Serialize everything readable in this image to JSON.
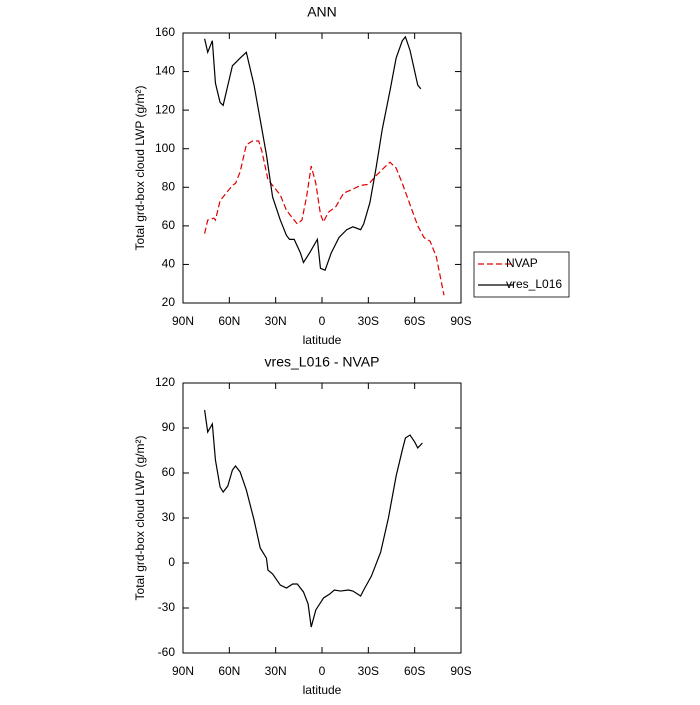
{
  "chart_data": [
    {
      "type": "line",
      "title": "ANN",
      "xlabel": "latitude",
      "ylabel": "Total grd-box cloud LWP (g/m²)",
      "xlim": [
        90,
        -90
      ],
      "xticks": [
        {
          "value": 90,
          "label": "90N"
        },
        {
          "value": 60,
          "label": "60N"
        },
        {
          "value": 30,
          "label": "30N"
        },
        0,
        {
          "value": -30,
          "label": "30S"
        },
        {
          "value": -60,
          "label": "60S"
        },
        {
          "value": -90,
          "label": "90S"
        }
      ],
      "ylim": [
        20,
        160
      ],
      "yticks": [
        20,
        40,
        60,
        80,
        100,
        120,
        140,
        160
      ],
      "legend": "outside-right",
      "series": [
        {
          "name": "NVAP",
          "color": "#e00000",
          "dashed": true,
          "x": [
            76,
            74,
            70,
            69,
            66,
            62,
            58,
            56,
            53,
            49,
            45,
            41,
            39,
            35,
            31,
            27,
            23,
            19,
            16,
            13,
            10,
            7,
            4,
            1,
            -1,
            -4,
            -9,
            -14,
            -20,
            -25,
            -30,
            -35,
            -40,
            -44,
            -48,
            -52,
            -57,
            -62,
            -66,
            -70,
            -74,
            -79
          ],
          "values": [
            56,
            63,
            64,
            63,
            73,
            77,
            81,
            82,
            88,
            102,
            104,
            104,
            99,
            84,
            80,
            76,
            68,
            64,
            61,
            63,
            75,
            91,
            82,
            66,
            62,
            67,
            70,
            77,
            79,
            81,
            81.5,
            86,
            90,
            93,
            90,
            82,
            71,
            60,
            54,
            52,
            44,
            24
          ]
        },
        {
          "name": "vres_L016",
          "color": "#000000",
          "dashed": false,
          "x": [
            76,
            74,
            71,
            69,
            66,
            64,
            58,
            53,
            49,
            44,
            40,
            36,
            32,
            27,
            23,
            21,
            18,
            14,
            12,
            8,
            3,
            1,
            -2,
            -6,
            -11,
            -16,
            -20,
            -25,
            -27,
            -31,
            -35,
            -39,
            -44,
            -48,
            -52,
            -54,
            -57,
            -62,
            -64
          ],
          "values": [
            157,
            150,
            156,
            134,
            124,
            122.5,
            143,
            147,
            150,
            133,
            115,
            97,
            75,
            63,
            55,
            53,
            53,
            46,
            41,
            46,
            53,
            38,
            37,
            46,
            54,
            58,
            59.5,
            58,
            61,
            72,
            90,
            110,
            130,
            147,
            156,
            158,
            151,
            133,
            131
          ]
        }
      ]
    },
    {
      "type": "line",
      "title": "vres_L016 - NVAP",
      "xlabel": "latitude",
      "ylabel": "Total grd-box cloud LWP (g/m²)",
      "xlim": [
        90,
        -90
      ],
      "xticks": [
        {
          "value": 90,
          "label": "90N"
        },
        {
          "value": 60,
          "label": "60N"
        },
        {
          "value": 30,
          "label": "30N"
        },
        0,
        {
          "value": -30,
          "label": "30S"
        },
        {
          "value": -60,
          "label": "60S"
        },
        {
          "value": -90,
          "label": "90S"
        }
      ],
      "ylim": [
        -60,
        120
      ],
      "yticks": [
        -60,
        -30,
        0,
        30,
        60,
        90,
        120
      ],
      "series": [
        {
          "color": "#000000",
          "dashed": false,
          "x": [
            76,
            74,
            71,
            69,
            66,
            64,
            61,
            58,
            56,
            53,
            49,
            44,
            40,
            36,
            35,
            32,
            27,
            23,
            19,
            16,
            12,
            9,
            7,
            4,
            -1,
            -5,
            -8,
            -12,
            -17,
            -20,
            -25,
            -27,
            -32,
            -38,
            -43,
            -48,
            -52,
            -54,
            -57,
            -60,
            -62,
            -65
          ],
          "values": [
            102,
            87.3,
            92.7,
            68.7,
            50.7,
            47.3,
            51.3,
            62,
            64.7,
            60.7,
            48.7,
            28.7,
            10,
            3.3,
            -4.7,
            -7.3,
            -14.7,
            -16.7,
            -14,
            -14,
            -19.3,
            -27.3,
            -42.7,
            -31.3,
            -23.3,
            -20.7,
            -18,
            -18.7,
            -18,
            -18.7,
            -22,
            -18,
            -8.7,
            7.3,
            30,
            58,
            75.3,
            83.3,
            85.3,
            80.7,
            76.7,
            80
          ]
        }
      ]
    }
  ]
}
